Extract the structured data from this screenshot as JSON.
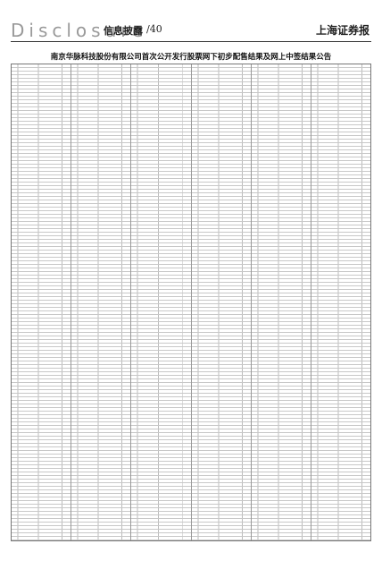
{
  "header": {
    "section": "Disclosure",
    "title": "信息披露",
    "page": "/40",
    "masthead": "上海证券报"
  },
  "article": {
    "title": "南京华脉科技股份有限公司首次公开发行股票网下初步配售结果及网上中签结果公告"
  }
}
